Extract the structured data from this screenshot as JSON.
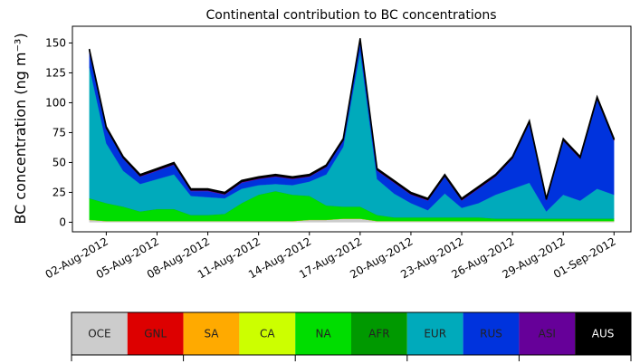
{
  "chart_data": {
    "type": "stacked_area",
    "title": "Continental contribution to BC concentrations",
    "ylabel": "BC concentration (ng m⁻³)",
    "x": [
      "2012-08-01",
      "2012-08-02",
      "2012-08-03",
      "2012-08-04",
      "2012-08-05",
      "2012-08-06",
      "2012-08-07",
      "2012-08-08",
      "2012-08-09",
      "2012-08-10",
      "2012-08-11",
      "2012-08-12",
      "2012-08-13",
      "2012-08-14",
      "2012-08-15",
      "2012-08-16",
      "2012-08-17",
      "2012-08-18",
      "2012-08-19",
      "2012-08-20",
      "2012-08-21",
      "2012-08-22",
      "2012-08-23",
      "2012-08-24",
      "2012-08-25",
      "2012-08-26",
      "2012-08-27",
      "2012-08-28",
      "2012-08-29",
      "2012-08-30",
      "2012-08-31",
      "2012-09-01"
    ],
    "series": [
      {
        "name": "OCE",
        "color": "#cccccc",
        "values": [
          2,
          1,
          1,
          1,
          1,
          1,
          1,
          1,
          1,
          1,
          1,
          1,
          1,
          2,
          2,
          3,
          3,
          1,
          1,
          1,
          1,
          1,
          1,
          1,
          1,
          1,
          1,
          1,
          1,
          1,
          1,
          1
        ]
      },
      {
        "name": "GNL",
        "color": "#dd0000",
        "values": [
          0,
          0,
          0,
          0,
          0,
          0,
          0,
          0,
          0,
          0,
          0,
          0,
          0,
          0,
          0,
          0,
          0,
          0,
          0,
          0,
          0,
          0,
          0,
          0,
          0,
          0,
          0,
          0,
          0,
          0,
          0,
          0
        ]
      },
      {
        "name": "SA",
        "color": "#ffaa00",
        "values": [
          0,
          0,
          0,
          0,
          0,
          0,
          0,
          0,
          0,
          0,
          0,
          0,
          0,
          0,
          0,
          0,
          0,
          0,
          0,
          0,
          0,
          0,
          0,
          0,
          0,
          0,
          0,
          0,
          0,
          0,
          0,
          0
        ]
      },
      {
        "name": "CA",
        "color": "#ccff00",
        "values": [
          0,
          0,
          0,
          0,
          0,
          0,
          0,
          0,
          0,
          0,
          0,
          0,
          0,
          0,
          0,
          0,
          0,
          0,
          0,
          0,
          0,
          0,
          0,
          0,
          0,
          0,
          0,
          0,
          0,
          0,
          0,
          0
        ]
      },
      {
        "name": "NA",
        "color": "#00dd00",
        "values": [
          18,
          15,
          12,
          8,
          10,
          10,
          5,
          5,
          6,
          15,
          22,
          25,
          22,
          20,
          12,
          10,
          10,
          5,
          3,
          3,
          3,
          3,
          3,
          3,
          2,
          2,
          2,
          2,
          2,
          2,
          2,
          2
        ]
      },
      {
        "name": "AFR",
        "color": "#009900",
        "values": [
          0,
          0,
          0,
          0,
          0,
          0,
          0,
          0,
          0,
          0,
          0,
          0,
          0,
          0,
          0,
          0,
          0,
          0,
          0,
          0,
          0,
          0,
          0,
          0,
          0,
          0,
          0,
          0,
          0,
          0,
          0,
          0
        ]
      },
      {
        "name": "EUR",
        "color": "#00aabb",
        "values": [
          110,
          50,
          30,
          23,
          25,
          29,
          16,
          15,
          13,
          12,
          8,
          6,
          8,
          12,
          26,
          50,
          130,
          30,
          20,
          12,
          6,
          20,
          8,
          12,
          20,
          25,
          30,
          6,
          20,
          15,
          25,
          20
        ]
      },
      {
        "name": "RUS",
        "color": "#0033dd",
        "values": [
          12,
          12,
          10,
          6,
          7,
          8,
          4,
          5,
          3,
          5,
          5,
          6,
          5,
          4,
          6,
          5,
          9,
          7,
          9,
          7,
          8,
          14,
          6,
          12,
          15,
          25,
          50,
          9,
          45,
          35,
          75,
          45
        ]
      },
      {
        "name": "ASI",
        "color": "#660099",
        "values": [
          2,
          1,
          1,
          1,
          1,
          1,
          1,
          1,
          1,
          1,
          1,
          1,
          1,
          1,
          1,
          1,
          1,
          1,
          1,
          1,
          1,
          1,
          1,
          1,
          1,
          1,
          1,
          1,
          1,
          1,
          1,
          1
        ]
      },
      {
        "name": "AUS",
        "color": "#000000",
        "values": [
          1,
          1,
          1,
          1,
          1,
          1,
          1,
          1,
          1,
          1,
          1,
          1,
          1,
          1,
          1,
          1,
          1,
          1,
          1,
          1,
          1,
          1,
          1,
          1,
          1,
          1,
          1,
          1,
          1,
          1,
          1,
          1
        ]
      }
    ],
    "xlim": [
      "2012-07-31",
      "2012-09-02"
    ],
    "xticks": [
      {
        "value": "2012-08-02",
        "label": "02-Aug-2012"
      },
      {
        "value": "2012-08-05",
        "label": "05-Aug-2012"
      },
      {
        "value": "2012-08-08",
        "label": "08-Aug-2012"
      },
      {
        "value": "2012-08-11",
        "label": "11-Aug-2012"
      },
      {
        "value": "2012-08-14",
        "label": "14-Aug-2012"
      },
      {
        "value": "2012-08-17",
        "label": "17-Aug-2012"
      },
      {
        "value": "2012-08-20",
        "label": "20-Aug-2012"
      },
      {
        "value": "2012-08-23",
        "label": "23-Aug-2012"
      },
      {
        "value": "2012-08-26",
        "label": "26-Aug-2012"
      },
      {
        "value": "2012-08-29",
        "label": "29-Aug-2012"
      },
      {
        "value": "2012-09-01",
        "label": "01-Sep-2012"
      }
    ],
    "ylim": [
      -8,
      164
    ],
    "yticks": [
      0,
      25,
      50,
      75,
      100,
      125,
      150
    ]
  }
}
